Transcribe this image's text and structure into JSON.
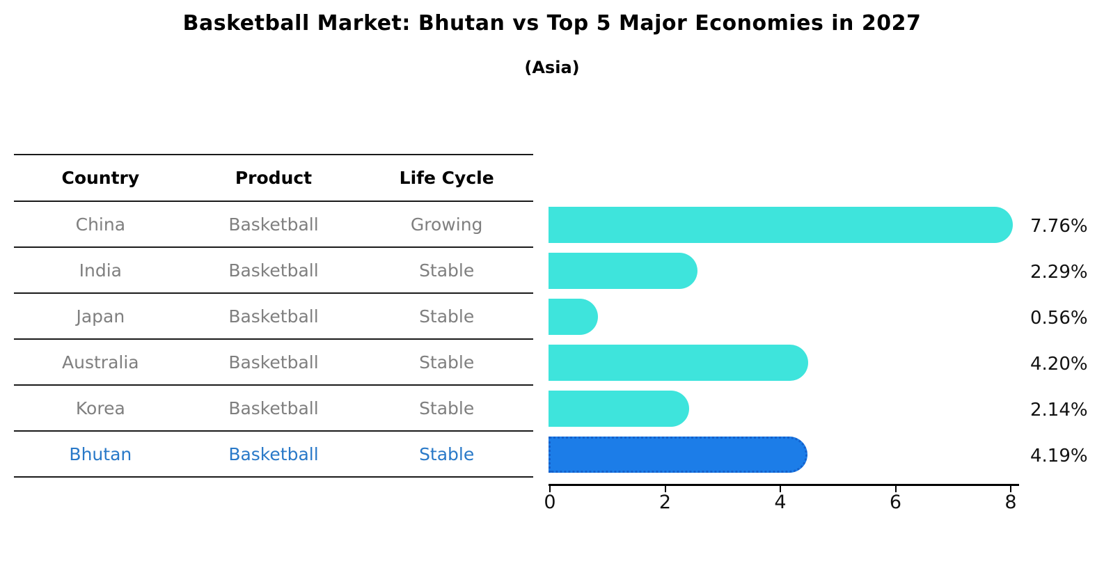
{
  "title": "Basketball Market: Bhutan vs Top 5 Major Economies in 2027",
  "subtitle": "(Asia)",
  "table": {
    "columns": [
      "Country",
      "Product",
      "Life Cycle"
    ],
    "rows": [
      {
        "country": "China",
        "product": "Basketball",
        "life_cycle": "Growing",
        "highlight": false
      },
      {
        "country": "India",
        "product": "Basketball",
        "life_cycle": "Stable",
        "highlight": false
      },
      {
        "country": "Japan",
        "product": "Basketball",
        "life_cycle": "Stable",
        "highlight": false
      },
      {
        "country": "Australia",
        "product": "Basketball",
        "life_cycle": "Stable",
        "highlight": false
      },
      {
        "country": "Korea",
        "product": "Basketball",
        "life_cycle": "Stable",
        "highlight": false
      },
      {
        "country": "Bhutan",
        "product": "Basketball",
        "life_cycle": "Stable",
        "highlight": true
      }
    ]
  },
  "chart_data": {
    "type": "bar",
    "orientation": "horizontal",
    "title": "Basketball Market: Bhutan vs Top 5 Major Economies in 2027",
    "subtitle": "(Asia)",
    "categories": [
      "China",
      "India",
      "Japan",
      "Australia",
      "Korea",
      "Bhutan"
    ],
    "values": [
      7.76,
      2.29,
      0.56,
      4.2,
      2.14,
      4.19
    ],
    "value_labels": [
      "7.76%",
      "2.29%",
      "0.56%",
      "4.20%",
      "2.14%",
      "4.19%"
    ],
    "xlim": [
      0,
      8
    ],
    "x_ticks": [
      "0",
      "2",
      "4",
      "6",
      "8"
    ],
    "highlight_category": "Bhutan",
    "grid": false,
    "legend": "none",
    "colors": {
      "bar_default": "#3ee4dc",
      "bar_highlight": "#1c7de8",
      "bar_highlight_border": "#1460cb",
      "row_text": "#7f7f7f",
      "highlight_text": "#2979c8",
      "label_text": "#111111"
    }
  }
}
